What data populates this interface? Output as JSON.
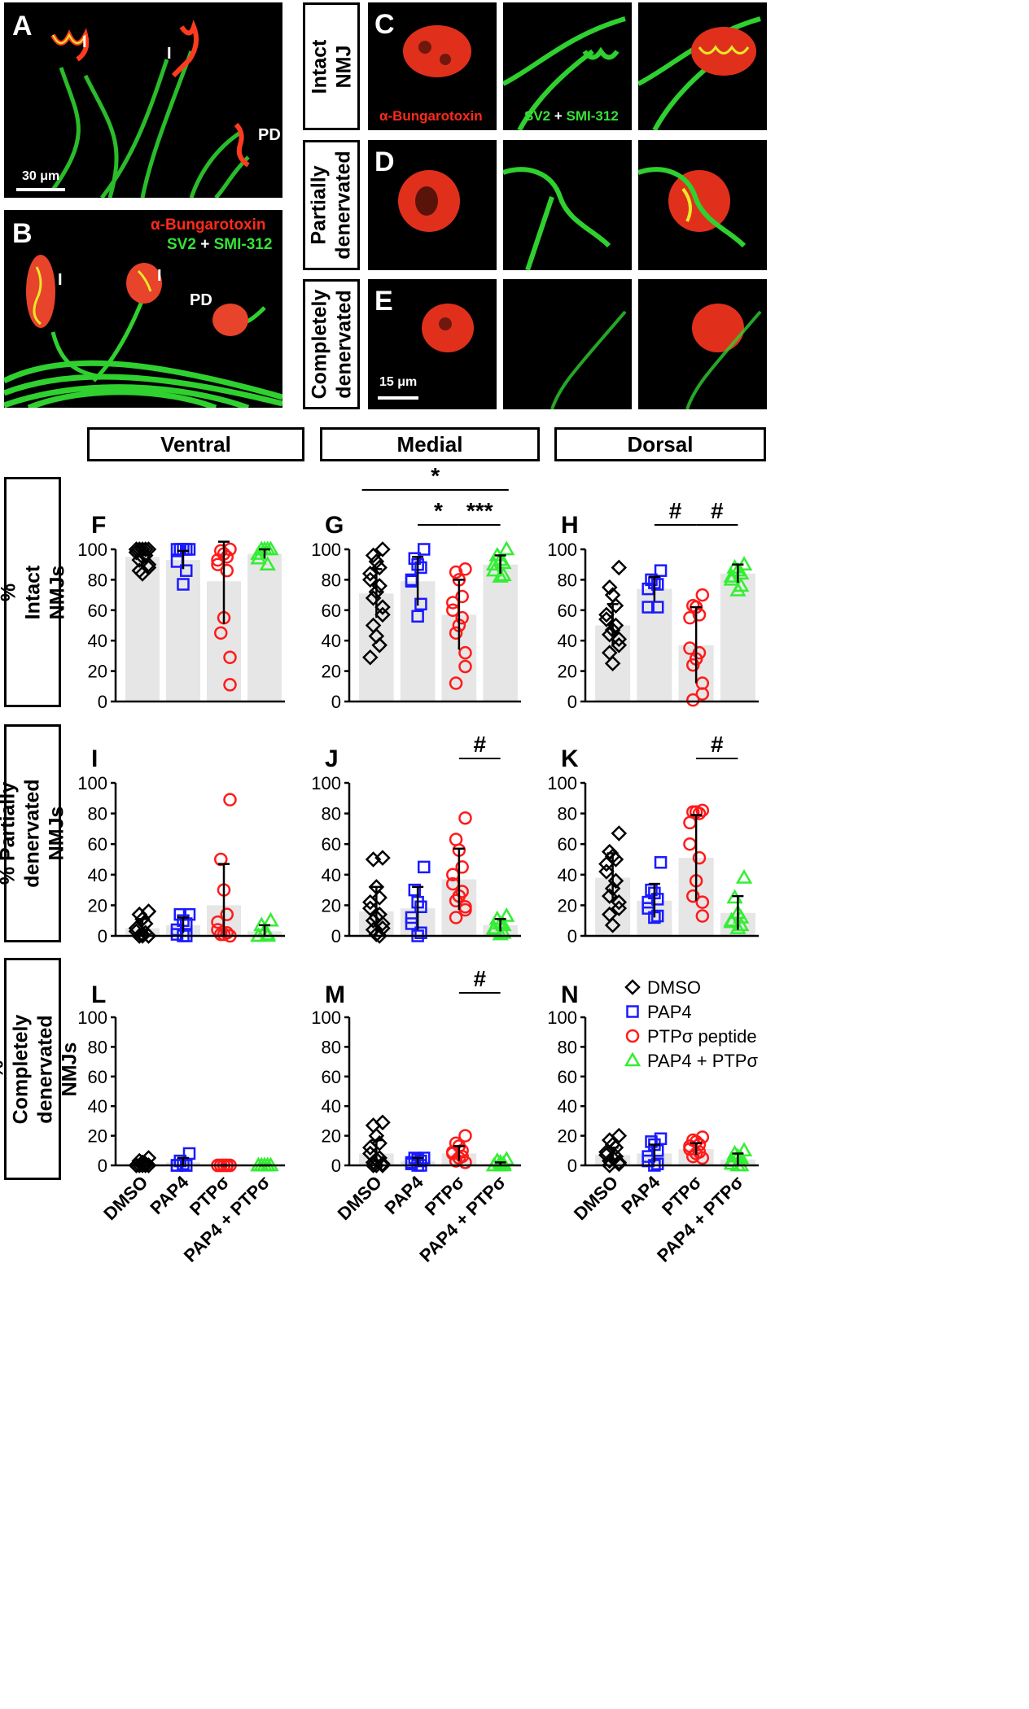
{
  "micrographs": {
    "A": {
      "letter": "A",
      "labels": [
        "I",
        "I",
        "PD"
      ],
      "scalebar": "30 μm"
    },
    "B": {
      "letter": "B",
      "labels": [
        "I",
        "I",
        "PD"
      ],
      "legend_red": "α-Bungarotoxin",
      "legend_green_1": "SV2",
      "legend_plus": "+",
      "legend_green_2": "SMI-312"
    },
    "C": {
      "letter": "C",
      "row_label": "Intact NMJ",
      "stain_red": "α-Bungarotoxin",
      "stain_green_1": "SV2",
      "stain_plus": "+",
      "stain_green_2": "SMI-312"
    },
    "D": {
      "letter": "D",
      "row_label": "Partially denervated"
    },
    "E": {
      "letter": "E",
      "row_label": "Completely denervated",
      "scalebar": "15 μm"
    }
  },
  "regions": {
    "ventral": "Ventral",
    "medial": "Medial",
    "dorsal": "Dorsal"
  },
  "row_labels": {
    "intact": "% Intact NMJs",
    "partial": "% Partially denervated NMJs",
    "complete": "% Completely denervated NMJs"
  },
  "colors": {
    "DMSO": "#000000",
    "PAP4": "#1a1aff",
    "PTPσ": "#ff1a1a",
    "PAP4 + PTPσ": "#33ee33",
    "bar": "#e6e6e6"
  },
  "legend": [
    {
      "label": "DMSO",
      "marker": "diamond",
      "group": "DMSO"
    },
    {
      "label": "PAP4",
      "marker": "square",
      "group": "PAP4"
    },
    {
      "label": "PTPσ peptide",
      "marker": "circle",
      "group": "PTPσ"
    },
    {
      "label": "PAP4 + PTPσ",
      "marker": "triangle",
      "group": "PAP4 + PTPσ"
    }
  ],
  "chart_data": [
    {
      "panel": "F",
      "type": "bar",
      "region": "Ventral",
      "ylabel": "% Intact NMJs",
      "ylim": [
        0,
        100
      ],
      "yticks": [
        0,
        20,
        40,
        60,
        80,
        100
      ],
      "categories": [
        "DMSO",
        "PAP4",
        "PTPσ",
        "PAP4 + PTPσ"
      ],
      "means": [
        95,
        93,
        79,
        97
      ],
      "sd": [
        4,
        6,
        28,
        3
      ],
      "points": [
        [
          100,
          100,
          100,
          100,
          100,
          98,
          96,
          95,
          93,
          90,
          88,
          86,
          84
        ],
        [
          100,
          100,
          100,
          100,
          100,
          92,
          86,
          77
        ],
        [
          100,
          99,
          97,
          95,
          93,
          90,
          86,
          55,
          45,
          29,
          11
        ],
        [
          100,
          100,
          100,
          100,
          97,
          94,
          90
        ]
      ],
      "significance": []
    },
    {
      "panel": "G",
      "type": "bar",
      "region": "Medial",
      "ylabel": "% Intact NMJs",
      "ylim": [
        0,
        100
      ],
      "yticks": [
        0,
        20,
        40,
        60,
        80,
        100
      ],
      "categories": [
        "DMSO",
        "PAP4",
        "PTPσ",
        "PAP4 + PTPσ"
      ],
      "means": [
        71,
        79,
        57,
        90
      ],
      "sd": [
        16,
        16,
        23,
        6
      ],
      "points": [
        [
          100,
          96,
          92,
          88,
          84,
          80,
          76,
          72,
          68,
          62,
          57,
          50,
          43,
          37,
          29
        ],
        [
          100,
          94,
          90,
          88,
          80,
          79,
          64,
          56
        ],
        [
          87,
          85,
          80,
          69,
          65,
          60,
          55,
          50,
          45,
          32,
          23,
          12
        ],
        [
          100,
          96,
          93,
          91,
          90,
          86,
          83,
          82
        ]
      ],
      "significance": [
        {
          "from": 0,
          "to": 3,
          "label": "*"
        },
        {
          "from": 1,
          "to": 2,
          "label": "*"
        },
        {
          "from": 2,
          "to": 3,
          "label": "***"
        }
      ]
    },
    {
      "panel": "H",
      "type": "bar",
      "region": "Dorsal",
      "ylabel": "% Intact NMJs",
      "ylim": [
        0,
        100
      ],
      "yticks": [
        0,
        20,
        40,
        60,
        80,
        100
      ],
      "categories": [
        "DMSO",
        "PAP4",
        "PTPσ",
        "PAP4 + PTPσ"
      ],
      "means": [
        50,
        74,
        37,
        84
      ],
      "sd": [
        14,
        8,
        25,
        6
      ],
      "points": [
        [
          88,
          75,
          70,
          63,
          57,
          54,
          50,
          47,
          44,
          41,
          37,
          32,
          25
        ],
        [
          86,
          80,
          78,
          77,
          74,
          62,
          62
        ],
        [
          70,
          63,
          62,
          57,
          55,
          35,
          32,
          28,
          24,
          12,
          5,
          1
        ],
        [
          90,
          88,
          86,
          84,
          82,
          80,
          76,
          73
        ]
      ],
      "significance": [
        {
          "from": 1,
          "to": 2,
          "label": "#"
        },
        {
          "from": 2,
          "to": 3,
          "label": "#"
        }
      ]
    },
    {
      "panel": "I",
      "type": "bar",
      "region": "Ventral",
      "ylabel": "% Partially denervated NMJs",
      "ylim": [
        0,
        100
      ],
      "yticks": [
        0,
        20,
        40,
        60,
        80,
        100
      ],
      "categories": [
        "DMSO",
        "PAP4",
        "PTPσ",
        "PAP4 + PTPσ"
      ],
      "means": [
        5,
        7,
        20,
        3
      ],
      "sd": [
        6,
        5,
        27,
        4
      ],
      "points": [
        [
          16,
          14,
          11,
          8,
          5,
          3,
          2,
          1,
          0,
          0,
          0,
          0,
          0
        ],
        [
          14,
          14,
          10,
          8,
          4,
          1,
          0,
          0
        ],
        [
          89,
          50,
          30,
          14,
          9,
          4,
          2,
          1,
          1,
          0
        ],
        [
          10,
          7,
          3,
          1,
          0,
          0,
          0
        ]
      ],
      "significance": []
    },
    {
      "panel": "J",
      "type": "bar",
      "region": "Medial",
      "ylabel": "% Partially denervated NMJs",
      "ylim": [
        0,
        100
      ],
      "yticks": [
        0,
        20,
        40,
        60,
        80,
        100
      ],
      "categories": [
        "DMSO",
        "PAP4",
        "PTPσ",
        "PAP4 + PTPσ"
      ],
      "means": [
        16,
        18,
        37,
        7
      ],
      "sd": [
        16,
        14,
        20,
        4
      ],
      "points": [
        [
          51,
          50,
          32,
          25,
          22,
          18,
          14,
          12,
          10,
          8,
          5,
          4,
          1,
          0
        ],
        [
          45,
          30,
          22,
          19,
          12,
          8,
          2,
          0
        ],
        [
          77,
          63,
          56,
          45,
          40,
          34,
          29,
          26,
          23,
          19,
          17,
          12
        ],
        [
          13,
          11,
          8,
          7,
          5,
          4,
          2,
          1
        ]
      ],
      "significance": [
        {
          "from": 2,
          "to": 3,
          "label": "#"
        }
      ]
    },
    {
      "panel": "K",
      "type": "bar",
      "region": "Dorsal",
      "ylabel": "% Partially denervated NMJs",
      "ylim": [
        0,
        100
      ],
      "yticks": [
        0,
        20,
        40,
        60,
        80,
        100
      ],
      "categories": [
        "DMSO",
        "PAP4",
        "PTPσ",
        "PAP4 + PTPσ"
      ],
      "means": [
        38,
        23,
        51,
        15
      ],
      "sd": [
        16,
        11,
        28,
        11
      ],
      "points": [
        [
          67,
          55,
          52,
          50,
          47,
          42,
          36,
          31,
          26,
          22,
          18,
          14,
          7
        ],
        [
          48,
          30,
          28,
          24,
          22,
          18,
          13,
          12
        ],
        [
          82,
          81,
          81,
          80,
          74,
          60,
          51,
          36,
          26,
          22,
          13
        ],
        [
          38,
          25,
          15,
          12,
          10,
          9,
          7,
          5
        ]
      ],
      "significance": [
        {
          "from": 2,
          "to": 3,
          "label": "#"
        }
      ]
    },
    {
      "panel": "L",
      "type": "bar",
      "region": "Ventral",
      "ylabel": "% Completely denervated NMJs",
      "ylim": [
        0,
        100
      ],
      "yticks": [
        0,
        20,
        40,
        60,
        80,
        100
      ],
      "categories": [
        "DMSO",
        "PAP4",
        "PTPσ",
        "PAP4 + PTPσ"
      ],
      "means": [
        1,
        2,
        0,
        0
      ],
      "sd": [
        2,
        3,
        0,
        0
      ],
      "points": [
        [
          5,
          3,
          2,
          1,
          0,
          0,
          0,
          0,
          0,
          0,
          0
        ],
        [
          8,
          3,
          1,
          0,
          0,
          0,
          0
        ],
        [
          0,
          0,
          0,
          0,
          0,
          0,
          0,
          0,
          0,
          0
        ],
        [
          0,
          0,
          0,
          0,
          0,
          0,
          0,
          0
        ]
      ],
      "significance": []
    },
    {
      "panel": "M",
      "type": "bar",
      "region": "Medial",
      "ylabel": "% Completely denervated NMJs",
      "ylim": [
        0,
        100
      ],
      "yticks": [
        0,
        20,
        40,
        60,
        80,
        100
      ],
      "categories": [
        "DMSO",
        "PAP4",
        "PTPσ",
        "PAP4 + PTPσ"
      ],
      "means": [
        8,
        3,
        8,
        1
      ],
      "sd": [
        9,
        2,
        5,
        1
      ],
      "points": [
        [
          29,
          27,
          20,
          15,
          12,
          8,
          5,
          4,
          2,
          1,
          0,
          0,
          0
        ],
        [
          5,
          5,
          4,
          3,
          2,
          1,
          0,
          0
        ],
        [
          20,
          15,
          13,
          10,
          9,
          8,
          6,
          5,
          3,
          2
        ],
        [
          4,
          3,
          2,
          1,
          0,
          0,
          0,
          0
        ]
      ],
      "significance": [
        {
          "from": 2,
          "to": 3,
          "label": "#"
        }
      ]
    },
    {
      "panel": "N",
      "type": "bar",
      "region": "Dorsal",
      "ylabel": "% Completely denervated NMJs",
      "ylim": [
        0,
        100
      ],
      "yticks": [
        0,
        20,
        40,
        60,
        80,
        100
      ],
      "categories": [
        "DMSO",
        "PAP4",
        "PTPσ",
        "PAP4 + PTPσ"
      ],
      "means": [
        7,
        8,
        11,
        4
      ],
      "sd": [
        5,
        6,
        4,
        4
      ],
      "points": [
        [
          20,
          17,
          14,
          12,
          9,
          7,
          6,
          5,
          3,
          2,
          1,
          0
        ],
        [
          18,
          16,
          14,
          10,
          6,
          3,
          1,
          0
        ],
        [
          19,
          17,
          16,
          14,
          13,
          11,
          9,
          8,
          6,
          5
        ],
        [
          10,
          8,
          6,
          5,
          3,
          1,
          0,
          0
        ]
      ],
      "significance": []
    }
  ]
}
